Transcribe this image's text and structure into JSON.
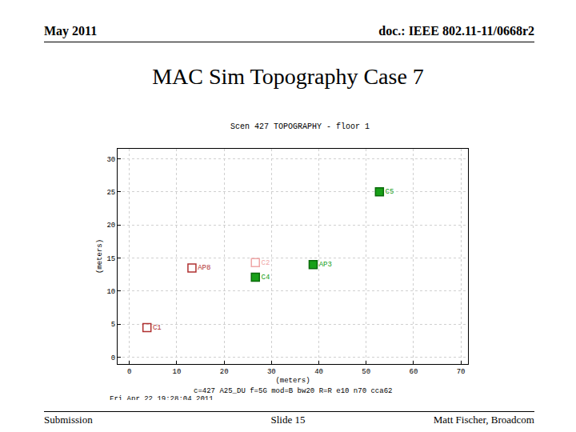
{
  "slide": {
    "header_left": "May 2011",
    "header_right": "doc.: IEEE 802.11-11/0668r2",
    "title": "MAC Sim Topography Case 7",
    "footer_left": "Submission",
    "footer_center": "Slide 15",
    "footer_right": "Matt Fischer, Broadcom"
  },
  "chart_data": {
    "type": "scatter",
    "title": "Scen 427 TOPOGRAPHY - floor 1",
    "x_label": "(meters)",
    "y_label": "(meters)",
    "notes": [
      "c=427 A25_DU f=5G mod=B bw20 R=R e10 n70 cca62",
      "Fri Apr 22 19:28:04 2011"
    ],
    "points": [
      {
        "label": "AP8",
        "x": 13.2,
        "y": 13.5,
        "color": "#b03030",
        "marker": "open"
      },
      {
        "label": "C1",
        "x": 3.7,
        "y": 4.5,
        "color": "#b03030",
        "marker": "open"
      },
      {
        "label": "C2",
        "x": 26.6,
        "y": 14.3,
        "color": "#f0a8a8",
        "marker": "open"
      },
      {
        "label": "C4",
        "x": 26.6,
        "y": 12.1,
        "color": "#18a018",
        "marker": "filled"
      },
      {
        "label": "AP3",
        "x": 38.8,
        "y": 14.0,
        "color": "#18a018",
        "marker": "filled"
      },
      {
        "label": "C5",
        "x": 52.8,
        "y": 25.0,
        "color": "#18a018",
        "marker": "filled"
      }
    ],
    "xlim": [
      -2.5,
      71.5
    ],
    "xticks": [
      0,
      10,
      20,
      30,
      40,
      50,
      60,
      70
    ],
    "ylim": [
      -1,
      31.5
    ],
    "yticks": [
      0,
      5,
      10,
      15,
      20,
      25,
      30
    ],
    "grid": true
  }
}
